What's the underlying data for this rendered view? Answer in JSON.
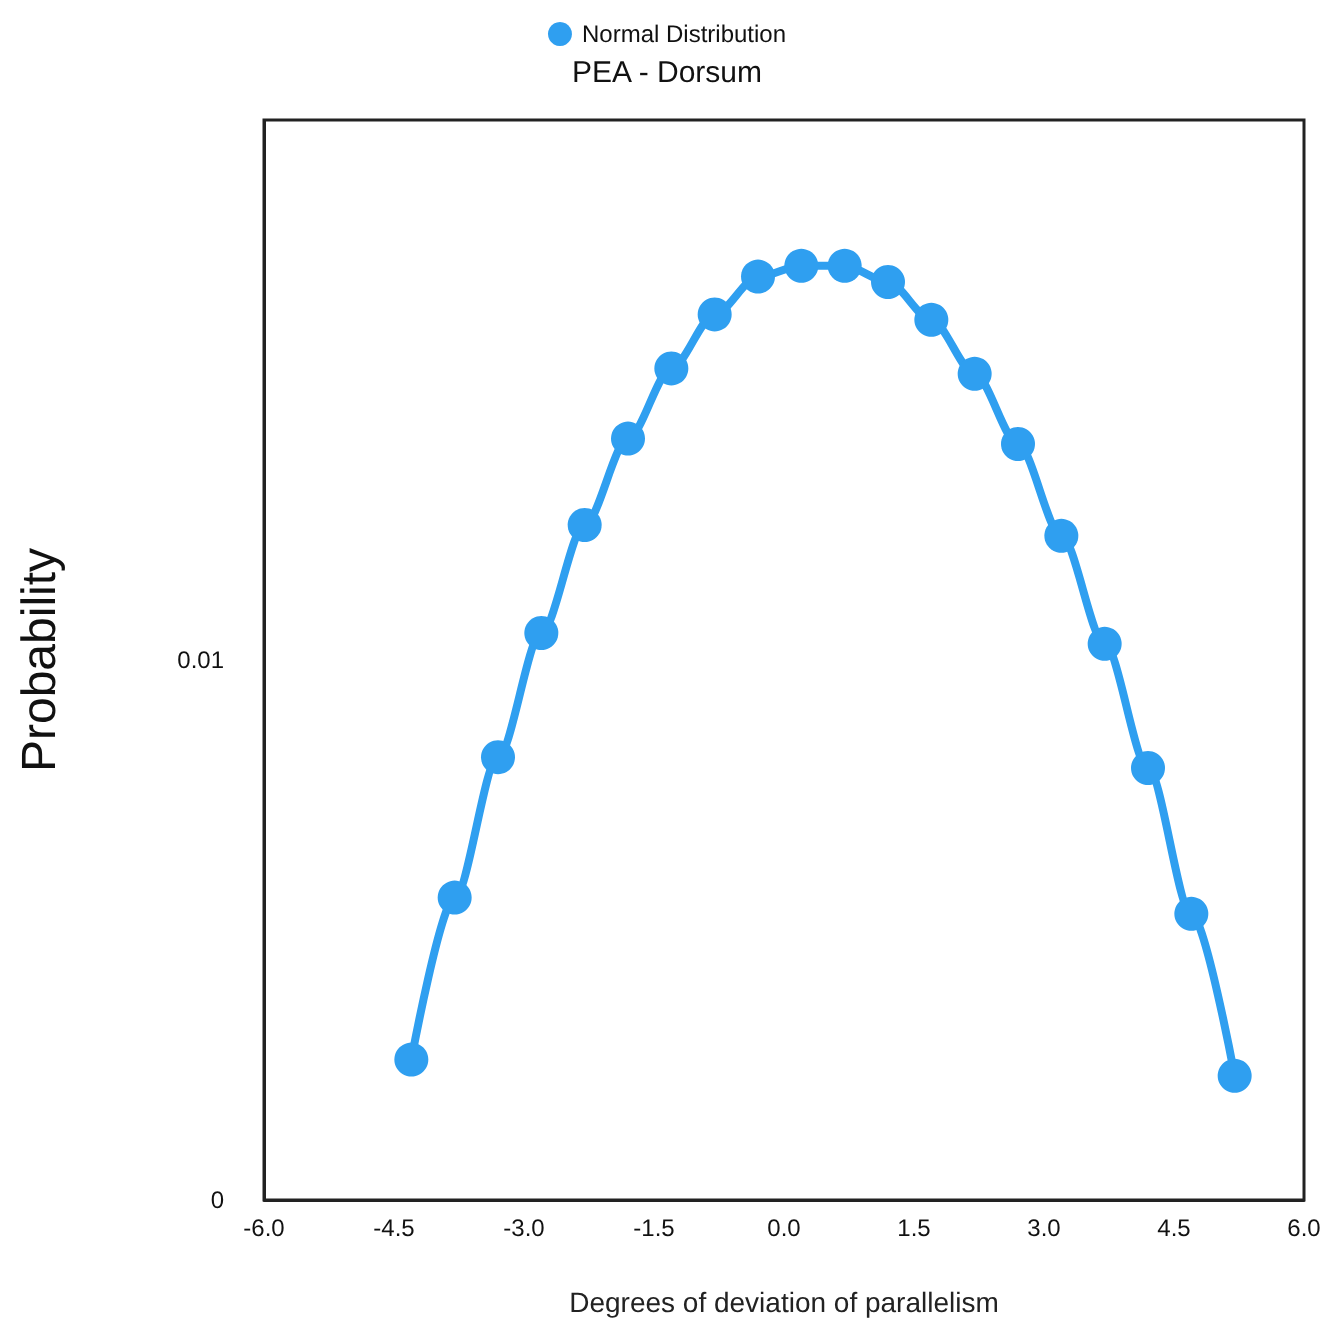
{
  "chart_data": {
    "type": "line",
    "title": "PEA - Dorsum",
    "xlabel": "Degrees of deviation of parallelism",
    "ylabel": "Probability",
    "x": [
      -4.3,
      -3.8,
      -3.3,
      -2.8,
      -2.3,
      -1.8,
      -1.3,
      -0.8,
      -0.3,
      0.2,
      0.7,
      1.2,
      1.7,
      2.2,
      2.7,
      3.2,
      3.7,
      4.2,
      4.7,
      5.2
    ],
    "series": [
      {
        "name": "Normal Distribution",
        "color": "#2f9ff0",
        "values": [
          0.0026,
          0.0056,
          0.0082,
          0.0105,
          0.0125,
          0.0141,
          0.0154,
          0.0164,
          0.0171,
          0.0173,
          0.0173,
          0.017,
          0.0163,
          0.0153,
          0.014,
          0.0123,
          0.0103,
          0.008,
          0.0053,
          0.0023
        ]
      }
    ],
    "xlim": [
      -6,
      6
    ],
    "xticks": [
      {
        "value": -6,
        "label": "-6.0"
      },
      {
        "value": -4.5,
        "label": "-4.5"
      },
      {
        "value": -3,
        "label": "-3.0"
      },
      {
        "value": -1.5,
        "label": "-1.5"
      },
      {
        "value": 0,
        "label": "0.0"
      },
      {
        "value": 1.5,
        "label": "1.5"
      },
      {
        "value": 3,
        "label": "3.0"
      },
      {
        "value": 4.5,
        "label": "4.5"
      },
      {
        "value": 6,
        "label": "6.0"
      }
    ],
    "ylim": [
      0,
      0.02
    ],
    "yticks": [
      0,
      0.01
    ],
    "grid": false,
    "legend": "top",
    "marker": "circle",
    "line_style": "solid"
  }
}
